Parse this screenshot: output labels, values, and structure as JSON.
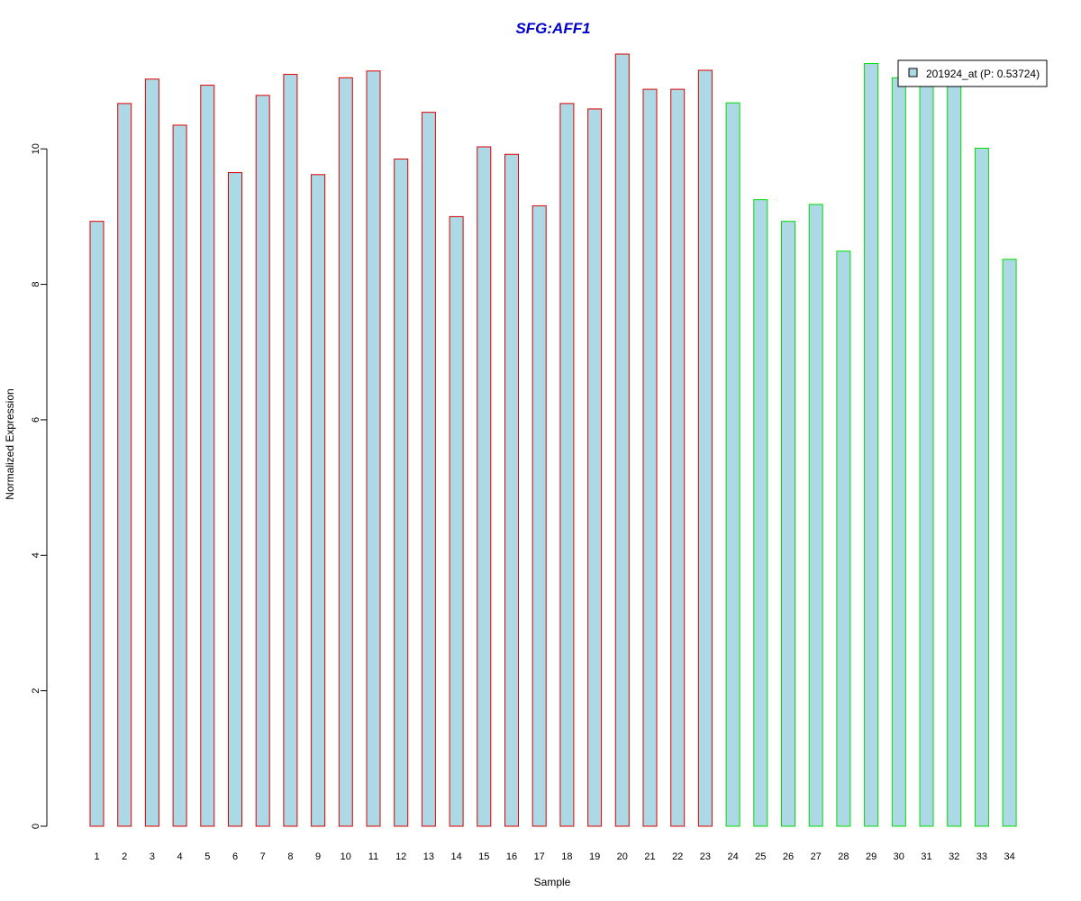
{
  "colors": {
    "title": "#0000CC",
    "bar_fill": "#ADD8E6",
    "group1_border": "#DD0000",
    "group2_border": "#00DD00",
    "axis": "#000000"
  },
  "chart_data": {
    "type": "bar",
    "title": "SFG:AFF1",
    "xlabel": "Sample",
    "ylabel": "Normalized Expression",
    "ylim": [
      0,
      11.4
    ],
    "yticks": [
      0,
      2,
      4,
      6,
      8,
      10
    ],
    "categories": [
      "1",
      "2",
      "3",
      "4",
      "5",
      "6",
      "7",
      "8",
      "9",
      "10",
      "11",
      "12",
      "13",
      "14",
      "15",
      "16",
      "17",
      "18",
      "19",
      "20",
      "21",
      "22",
      "23",
      "24",
      "25",
      "26",
      "27",
      "28",
      "29",
      "30",
      "31",
      "32",
      "33",
      "34"
    ],
    "series": [
      {
        "name": "201924_at (P: 0.53724)",
        "values": [
          8.93,
          10.67,
          11.03,
          10.35,
          10.94,
          9.65,
          10.79,
          11.1,
          9.62,
          11.05,
          11.15,
          9.85,
          10.54,
          9.0,
          10.03,
          9.92,
          9.16,
          10.67,
          10.59,
          11.4,
          10.88,
          10.88,
          11.16,
          10.68,
          9.25,
          8.93,
          9.18,
          8.49,
          11.26,
          11.05,
          10.96,
          10.96,
          10.01,
          8.37
        ],
        "group": [
          1,
          1,
          1,
          1,
          1,
          1,
          1,
          1,
          1,
          1,
          1,
          1,
          1,
          1,
          1,
          1,
          1,
          1,
          1,
          1,
          1,
          1,
          1,
          2,
          2,
          2,
          2,
          2,
          2,
          2,
          2,
          2,
          2,
          2
        ]
      }
    ],
    "legend": {
      "position": "top-right",
      "label": "201924_at (P: 0.53724)"
    },
    "grid": false
  }
}
